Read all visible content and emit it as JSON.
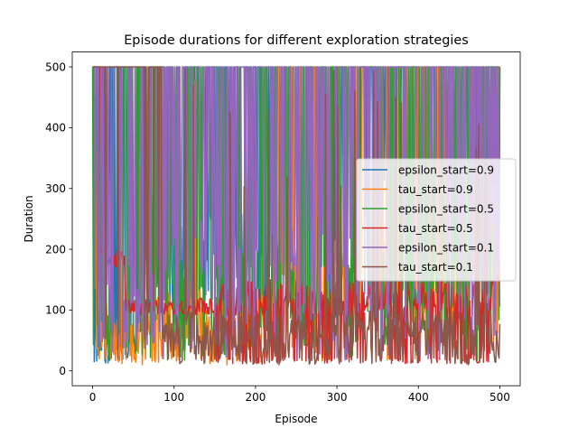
{
  "chart_data": {
    "type": "line",
    "title": "Episode durations for different exploration strategies",
    "xlabel": "Episode",
    "ylabel": "Duration",
    "xlim": [
      -25,
      525
    ],
    "ylim": [
      -24.5,
      524.5
    ],
    "xticks": [
      0,
      100,
      200,
      300,
      400,
      500
    ],
    "yticks": [
      0,
      100,
      200,
      300,
      400,
      500
    ],
    "grid": false,
    "legend_position": "right",
    "series": [
      {
        "name": "epsilon_start=0.9",
        "color": "#1f77b4",
        "seed": 11,
        "profile": "slow-learner",
        "values_summary": "mostly 100-500 oscillating, frequently hits cap 500 from episode ~300 onward"
      },
      {
        "name": "tau_start=0.9",
        "color": "#ff7f0e",
        "seed": 23,
        "profile": "late-learner",
        "values_summary": "low (10-130) early, many spikes to 500 after ~220"
      },
      {
        "name": "epsilon_start=0.5",
        "color": "#2ca02c",
        "seed": 37,
        "profile": "fast-oscillator",
        "values_summary": "rapid oscillation between ~15 and 500 throughout"
      },
      {
        "name": "tau_start=0.5",
        "color": "#d62728",
        "seed": 41,
        "profile": "plateau",
        "values_summary": "starts 500, drops to ~100 plateau, then frequent drops to ~12, ends ~150"
      },
      {
        "name": "epsilon_start=0.1",
        "color": "#9467bd",
        "seed": 53,
        "profile": "mid-learner",
        "values_summary": "oscillates 100-500 with many low dips, mostly 500 late"
      },
      {
        "name": "tau_start=0.1",
        "color": "#8c564b",
        "seed": 67,
        "profile": "early-peak",
        "values_summary": "500 for first ~85 episodes then drops to 10-100 range with occasional spikes"
      }
    ]
  }
}
